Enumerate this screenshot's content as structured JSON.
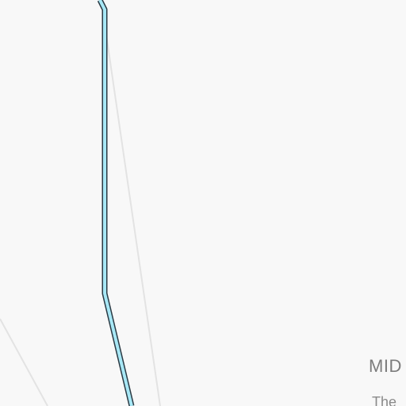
{
  "map": {
    "background_color": "#f8f8f8",
    "road_color": "#e3e3e3",
    "route_fill_color": "#a8e8f6",
    "route_outline_color": "#2a3a44",
    "labels": {
      "district": "MID",
      "area": "The"
    }
  }
}
